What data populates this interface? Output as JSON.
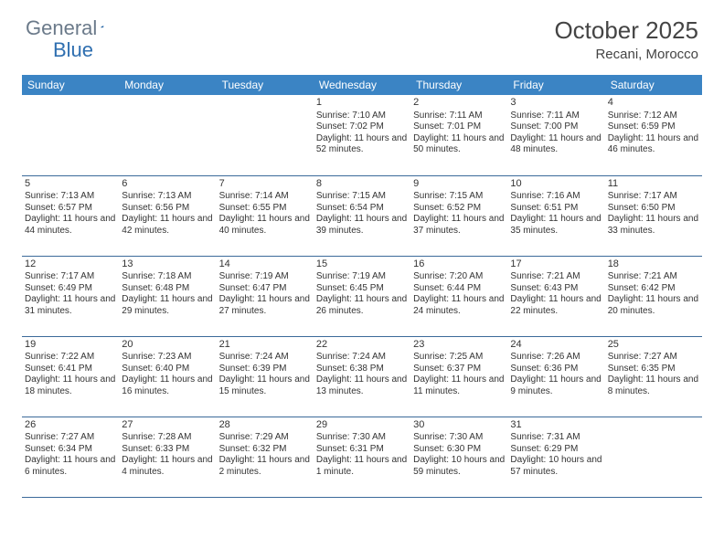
{
  "logo": {
    "general": "General",
    "blue": "Blue"
  },
  "title": "October 2025",
  "location": "Recani, Morocco",
  "colors": {
    "header_bg": "#3b84c4",
    "header_text": "#ffffff",
    "row_border": "#3b6a9a",
    "logo_general": "#6b7a8a",
    "logo_blue": "#2f6fb0",
    "text": "#333333",
    "background": "#ffffff"
  },
  "weekdays": [
    "Sunday",
    "Monday",
    "Tuesday",
    "Wednesday",
    "Thursday",
    "Friday",
    "Saturday"
  ],
  "weeks": [
    [
      {
        "day": "",
        "sunrise": "",
        "sunset": "",
        "daylight": ""
      },
      {
        "day": "",
        "sunrise": "",
        "sunset": "",
        "daylight": ""
      },
      {
        "day": "",
        "sunrise": "",
        "sunset": "",
        "daylight": ""
      },
      {
        "day": "1",
        "sunrise": "Sunrise: 7:10 AM",
        "sunset": "Sunset: 7:02 PM",
        "daylight": "Daylight: 11 hours and 52 minutes."
      },
      {
        "day": "2",
        "sunrise": "Sunrise: 7:11 AM",
        "sunset": "Sunset: 7:01 PM",
        "daylight": "Daylight: 11 hours and 50 minutes."
      },
      {
        "day": "3",
        "sunrise": "Sunrise: 7:11 AM",
        "sunset": "Sunset: 7:00 PM",
        "daylight": "Daylight: 11 hours and 48 minutes."
      },
      {
        "day": "4",
        "sunrise": "Sunrise: 7:12 AM",
        "sunset": "Sunset: 6:59 PM",
        "daylight": "Daylight: 11 hours and 46 minutes."
      }
    ],
    [
      {
        "day": "5",
        "sunrise": "Sunrise: 7:13 AM",
        "sunset": "Sunset: 6:57 PM",
        "daylight": "Daylight: 11 hours and 44 minutes."
      },
      {
        "day": "6",
        "sunrise": "Sunrise: 7:13 AM",
        "sunset": "Sunset: 6:56 PM",
        "daylight": "Daylight: 11 hours and 42 minutes."
      },
      {
        "day": "7",
        "sunrise": "Sunrise: 7:14 AM",
        "sunset": "Sunset: 6:55 PM",
        "daylight": "Daylight: 11 hours and 40 minutes."
      },
      {
        "day": "8",
        "sunrise": "Sunrise: 7:15 AM",
        "sunset": "Sunset: 6:54 PM",
        "daylight": "Daylight: 11 hours and 39 minutes."
      },
      {
        "day": "9",
        "sunrise": "Sunrise: 7:15 AM",
        "sunset": "Sunset: 6:52 PM",
        "daylight": "Daylight: 11 hours and 37 minutes."
      },
      {
        "day": "10",
        "sunrise": "Sunrise: 7:16 AM",
        "sunset": "Sunset: 6:51 PM",
        "daylight": "Daylight: 11 hours and 35 minutes."
      },
      {
        "day": "11",
        "sunrise": "Sunrise: 7:17 AM",
        "sunset": "Sunset: 6:50 PM",
        "daylight": "Daylight: 11 hours and 33 minutes."
      }
    ],
    [
      {
        "day": "12",
        "sunrise": "Sunrise: 7:17 AM",
        "sunset": "Sunset: 6:49 PM",
        "daylight": "Daylight: 11 hours and 31 minutes."
      },
      {
        "day": "13",
        "sunrise": "Sunrise: 7:18 AM",
        "sunset": "Sunset: 6:48 PM",
        "daylight": "Daylight: 11 hours and 29 minutes."
      },
      {
        "day": "14",
        "sunrise": "Sunrise: 7:19 AM",
        "sunset": "Sunset: 6:47 PM",
        "daylight": "Daylight: 11 hours and 27 minutes."
      },
      {
        "day": "15",
        "sunrise": "Sunrise: 7:19 AM",
        "sunset": "Sunset: 6:45 PM",
        "daylight": "Daylight: 11 hours and 26 minutes."
      },
      {
        "day": "16",
        "sunrise": "Sunrise: 7:20 AM",
        "sunset": "Sunset: 6:44 PM",
        "daylight": "Daylight: 11 hours and 24 minutes."
      },
      {
        "day": "17",
        "sunrise": "Sunrise: 7:21 AM",
        "sunset": "Sunset: 6:43 PM",
        "daylight": "Daylight: 11 hours and 22 minutes."
      },
      {
        "day": "18",
        "sunrise": "Sunrise: 7:21 AM",
        "sunset": "Sunset: 6:42 PM",
        "daylight": "Daylight: 11 hours and 20 minutes."
      }
    ],
    [
      {
        "day": "19",
        "sunrise": "Sunrise: 7:22 AM",
        "sunset": "Sunset: 6:41 PM",
        "daylight": "Daylight: 11 hours and 18 minutes."
      },
      {
        "day": "20",
        "sunrise": "Sunrise: 7:23 AM",
        "sunset": "Sunset: 6:40 PM",
        "daylight": "Daylight: 11 hours and 16 minutes."
      },
      {
        "day": "21",
        "sunrise": "Sunrise: 7:24 AM",
        "sunset": "Sunset: 6:39 PM",
        "daylight": "Daylight: 11 hours and 15 minutes."
      },
      {
        "day": "22",
        "sunrise": "Sunrise: 7:24 AM",
        "sunset": "Sunset: 6:38 PM",
        "daylight": "Daylight: 11 hours and 13 minutes."
      },
      {
        "day": "23",
        "sunrise": "Sunrise: 7:25 AM",
        "sunset": "Sunset: 6:37 PM",
        "daylight": "Daylight: 11 hours and 11 minutes."
      },
      {
        "day": "24",
        "sunrise": "Sunrise: 7:26 AM",
        "sunset": "Sunset: 6:36 PM",
        "daylight": "Daylight: 11 hours and 9 minutes."
      },
      {
        "day": "25",
        "sunrise": "Sunrise: 7:27 AM",
        "sunset": "Sunset: 6:35 PM",
        "daylight": "Daylight: 11 hours and 8 minutes."
      }
    ],
    [
      {
        "day": "26",
        "sunrise": "Sunrise: 7:27 AM",
        "sunset": "Sunset: 6:34 PM",
        "daylight": "Daylight: 11 hours and 6 minutes."
      },
      {
        "day": "27",
        "sunrise": "Sunrise: 7:28 AM",
        "sunset": "Sunset: 6:33 PM",
        "daylight": "Daylight: 11 hours and 4 minutes."
      },
      {
        "day": "28",
        "sunrise": "Sunrise: 7:29 AM",
        "sunset": "Sunset: 6:32 PM",
        "daylight": "Daylight: 11 hours and 2 minutes."
      },
      {
        "day": "29",
        "sunrise": "Sunrise: 7:30 AM",
        "sunset": "Sunset: 6:31 PM",
        "daylight": "Daylight: 11 hours and 1 minute."
      },
      {
        "day": "30",
        "sunrise": "Sunrise: 7:30 AM",
        "sunset": "Sunset: 6:30 PM",
        "daylight": "Daylight: 10 hours and 59 minutes."
      },
      {
        "day": "31",
        "sunrise": "Sunrise: 7:31 AM",
        "sunset": "Sunset: 6:29 PM",
        "daylight": "Daylight: 10 hours and 57 minutes."
      },
      {
        "day": "",
        "sunrise": "",
        "sunset": "",
        "daylight": ""
      }
    ]
  ]
}
